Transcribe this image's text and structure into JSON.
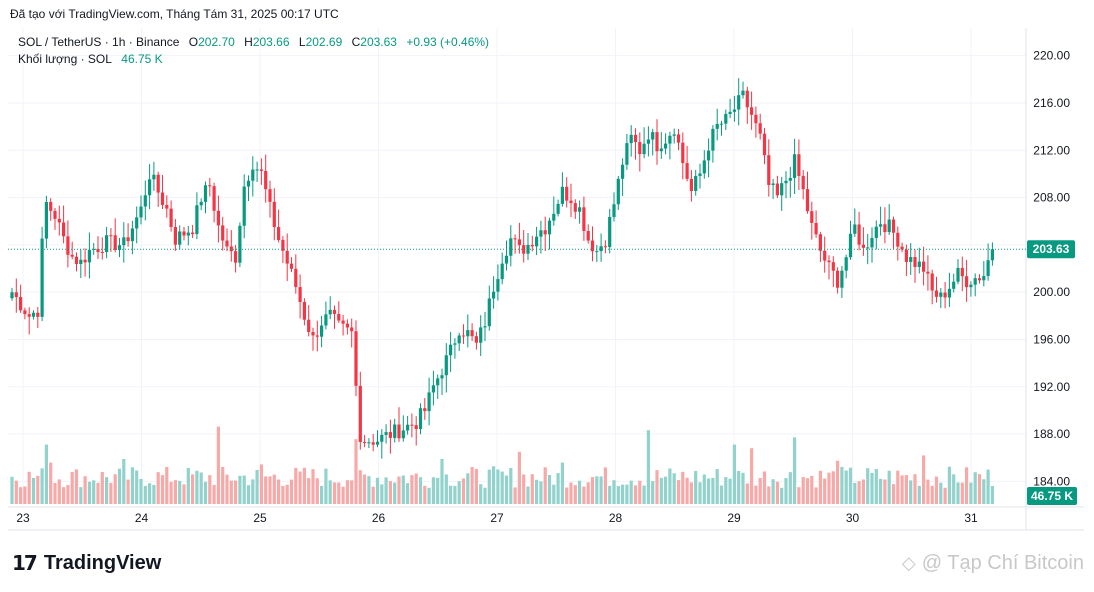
{
  "header": {
    "caption": "Đã tạo với TradingView.com, Tháng Tám 31, 2025 00:17 UTC"
  },
  "legend": {
    "symbol": "SOL / TetherUS · 1h · Binance",
    "open_label": "O",
    "open": "202.70",
    "high_label": "H",
    "high": "203.66",
    "low_label": "L",
    "low": "202.69",
    "close_label": "C",
    "close": "203.63",
    "change": "+0.93 (+0.46%)",
    "volume_label": "Khối lượng · SOL",
    "volume": "46.75 K"
  },
  "footer": {
    "logo_text": "TradingView",
    "logo_mark": "17",
    "watermark": "@ Tạp Chí Bitcoin"
  },
  "colors": {
    "up": "#089981",
    "down": "#f23645",
    "up_vol": "#92d2cc",
    "down_vol": "#f7a9a7",
    "grid": "#f0f3fa"
  },
  "chart_data": {
    "type": "candlestick",
    "ylim": [
      182,
      222
    ],
    "y_ticks": [
      "220.00",
      "216.00",
      "212.00",
      "208.00",
      "204.00",
      "200.00",
      "196.00",
      "192.00",
      "188.00",
      "184.00"
    ],
    "x_ticks": [
      "23",
      "24",
      "25",
      "26",
      "27",
      "28",
      "29",
      "30",
      "31"
    ],
    "last_price": "203.63",
    "last_volume": "46.75 K",
    "close_path": [
      [
        0,
        200.0
      ],
      [
        2,
        199.0
      ],
      [
        4,
        198.0
      ],
      [
        6,
        198.5
      ],
      [
        7,
        204.0
      ],
      [
        8,
        207.5
      ],
      [
        10,
        206.5
      ],
      [
        12,
        204.5
      ],
      [
        14,
        203.0
      ],
      [
        16,
        202.5
      ],
      [
        18,
        203.5
      ],
      [
        22,
        204.2
      ],
      [
        26,
        204.0
      ],
      [
        30,
        207.0
      ],
      [
        32,
        210.0
      ],
      [
        34,
        208.5
      ],
      [
        36,
        207.0
      ],
      [
        38,
        204.5
      ],
      [
        42,
        205.5
      ],
      [
        44,
        208.0
      ],
      [
        46,
        209.0
      ],
      [
        48,
        205.5
      ],
      [
        50,
        203.5
      ],
      [
        52,
        203.0
      ],
      [
        54,
        209.0
      ],
      [
        56,
        211.0
      ],
      [
        58,
        210.0
      ],
      [
        60,
        207.0
      ],
      [
        62,
        204.5
      ],
      [
        64,
        202.5
      ],
      [
        66,
        200.5
      ],
      [
        68,
        198.0
      ],
      [
        70,
        196.0
      ],
      [
        72,
        197.5
      ],
      [
        74,
        198.0
      ],
      [
        76,
        197.0
      ],
      [
        79,
        196.5
      ],
      [
        80,
        192.0
      ],
      [
        81,
        188.0
      ],
      [
        82,
        187.5
      ],
      [
        85,
        187.5
      ],
      [
        88,
        188.0
      ],
      [
        91,
        188.5
      ],
      [
        94,
        189.0
      ],
      [
        96,
        190.0
      ],
      [
        98,
        192.0
      ],
      [
        100,
        193.5
      ],
      [
        102,
        195.0
      ],
      [
        104,
        197.0
      ],
      [
        106,
        196.5
      ],
      [
        108,
        195.5
      ],
      [
        110,
        197.5
      ],
      [
        112,
        200.5
      ],
      [
        114,
        203.0
      ],
      [
        116,
        204.5
      ],
      [
        118,
        203.5
      ],
      [
        120,
        204.0
      ],
      [
        122,
        205.0
      ],
      [
        124,
        205.5
      ],
      [
        126,
        207.0
      ],
      [
        128,
        208.5
      ],
      [
        130,
        208.0
      ],
      [
        132,
        207.0
      ],
      [
        134,
        204.5
      ],
      [
        136,
        203.5
      ],
      [
        138,
        204.5
      ],
      [
        140,
        207.5
      ],
      [
        142,
        211.0
      ],
      [
        144,
        213.0
      ],
      [
        146,
        212.0
      ],
      [
        148,
        213.5
      ],
      [
        150,
        212.5
      ],
      [
        152,
        213.0
      ],
      [
        154,
        214.0
      ],
      [
        156,
        211.0
      ],
      [
        158,
        208.5
      ],
      [
        160,
        210.0
      ],
      [
        162,
        212.5
      ],
      [
        164,
        214.0
      ],
      [
        166,
        214.5
      ],
      [
        168,
        215.5
      ],
      [
        170,
        216.5
      ],
      [
        172,
        215.0
      ],
      [
        174,
        213.0
      ],
      [
        176,
        209.0
      ],
      [
        178,
        208.0
      ],
      [
        180,
        209.5
      ],
      [
        182,
        211.0
      ],
      [
        184,
        208.5
      ],
      [
        186,
        205.5
      ],
      [
        188,
        203.5
      ],
      [
        190,
        202.0
      ],
      [
        192,
        201.0
      ],
      [
        194,
        203.0
      ],
      [
        196,
        205.5
      ],
      [
        198,
        203.5
      ],
      [
        200,
        205.0
      ],
      [
        202,
        206.0
      ],
      [
        204,
        205.5
      ],
      [
        206,
        204.5
      ],
      [
        208,
        203.0
      ],
      [
        210,
        202.5
      ],
      [
        212,
        202.0
      ],
      [
        214,
        200.0
      ],
      [
        216,
        199.5
      ],
      [
        218,
        200.5
      ],
      [
        220,
        201.5
      ],
      [
        222,
        201.0
      ],
      [
        224,
        201.2
      ],
      [
        226,
        201.5
      ],
      [
        227,
        202.7
      ],
      [
        228,
        203.63
      ]
    ],
    "volume_spikes": [
      [
        8,
        3.3
      ],
      [
        9,
        2.3
      ],
      [
        26,
        2.5
      ],
      [
        48,
        4.3
      ],
      [
        58,
        2.2
      ],
      [
        80,
        3.6
      ],
      [
        100,
        2.5
      ],
      [
        118,
        2.9
      ],
      [
        128,
        2.3
      ],
      [
        148,
        4.1
      ],
      [
        168,
        3.3
      ],
      [
        172,
        3.1
      ],
      [
        182,
        3.7
      ],
      [
        192,
        2.4
      ],
      [
        212,
        2.7
      ],
      [
        228,
        1.0
      ]
    ]
  }
}
